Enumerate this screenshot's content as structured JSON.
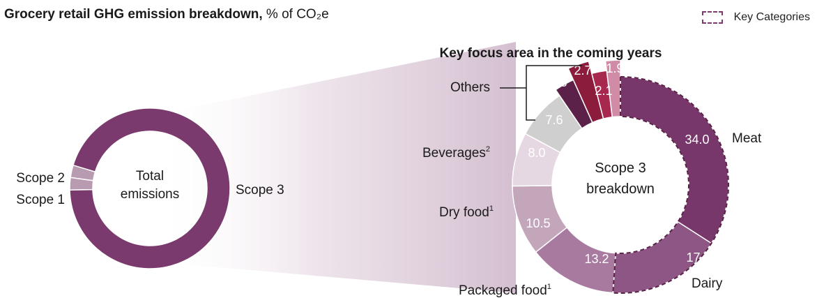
{
  "title": {
    "bold": "Grocery retail GHG emission breakdown,",
    "rest": "% of CO₂e"
  },
  "legend": {
    "label": "Key Categories"
  },
  "focus_label": "Key focus area in the coming years",
  "colors": {
    "scope3": "#7b3a6e",
    "scope_small": "#b89ab1",
    "meat": "#77376a",
    "dairy": "#8d5684",
    "packaged": "#a97a9f",
    "dry": "#c4a6bb",
    "bev": "#e6d8e2",
    "bev_text": "#ffffff",
    "others": "#cfcfcf",
    "c28": "#5b2148",
    "c27": "#8c1c3c",
    "c21": "#a8274f",
    "c19": "#d08ba6",
    "fan": "#d4bfd0"
  },
  "chart_data": [
    {
      "type": "pie",
      "center_label": [
        "Total",
        "emissions"
      ],
      "slices": [
        {
          "label": "Scope 3",
          "value": 0.95
        },
        {
          "label": "Scope 2",
          "value": 0.025
        },
        {
          "label": "Scope 1",
          "value": 0.025
        }
      ]
    },
    {
      "type": "pie",
      "center_label": [
        "Scope 3",
        "breakdown"
      ],
      "slices": [
        {
          "label": "Meat",
          "value": 34.0,
          "display": "34.0",
          "key": true
        },
        {
          "label": "Dairy",
          "value": 17.0,
          "display": "17.0",
          "key": true
        },
        {
          "label": "Packaged food",
          "sup": "1",
          "value": 13.2,
          "display": "13.2"
        },
        {
          "label": "Dry food",
          "sup": "1",
          "value": 10.5,
          "display": "10.5"
        },
        {
          "label": "Beverages",
          "sup": "2",
          "value": 8.0,
          "display": "8.0"
        },
        {
          "label": "Others",
          "value": 7.6,
          "display": "7.6"
        },
        {
          "label": "",
          "value": 2.8,
          "display": "2.8"
        },
        {
          "label": "",
          "value": 2.7,
          "display": "2.7"
        },
        {
          "label": "",
          "value": 2.1,
          "display": "2.1"
        },
        {
          "label": "",
          "value": 1.9,
          "display": "1.9"
        }
      ]
    }
  ]
}
